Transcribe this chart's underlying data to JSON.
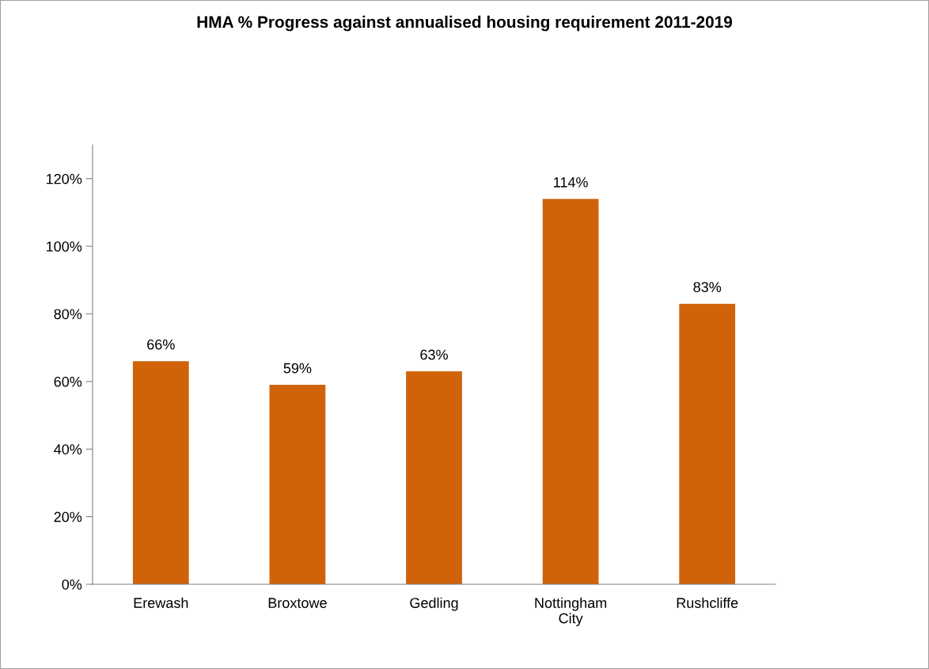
{
  "chart_data": {
    "type": "bar",
    "title": "HMA % Progress against annualised housing requirement 2011-2019",
    "categories": [
      "Erewash",
      "Broxtowe",
      "Gedling",
      "Nottingham\nCity",
      "Rushcliffe"
    ],
    "values": [
      66,
      59,
      63,
      114,
      83
    ],
    "color": "#d0630a",
    "value_labels": [
      "66%",
      "59%",
      "63%",
      "114%",
      "83%"
    ],
    "ylim": [
      0,
      130
    ],
    "yticks": [
      {
        "value": 0,
        "label": "0%"
      },
      {
        "value": 20,
        "label": "20%"
      },
      {
        "value": 40,
        "label": "40%"
      },
      {
        "value": 60,
        "label": "60%"
      },
      {
        "value": 80,
        "label": "80%"
      },
      {
        "value": 100,
        "label": "100%"
      },
      {
        "value": 120,
        "label": "120%"
      }
    ],
    "grid": false,
    "legend": false
  }
}
